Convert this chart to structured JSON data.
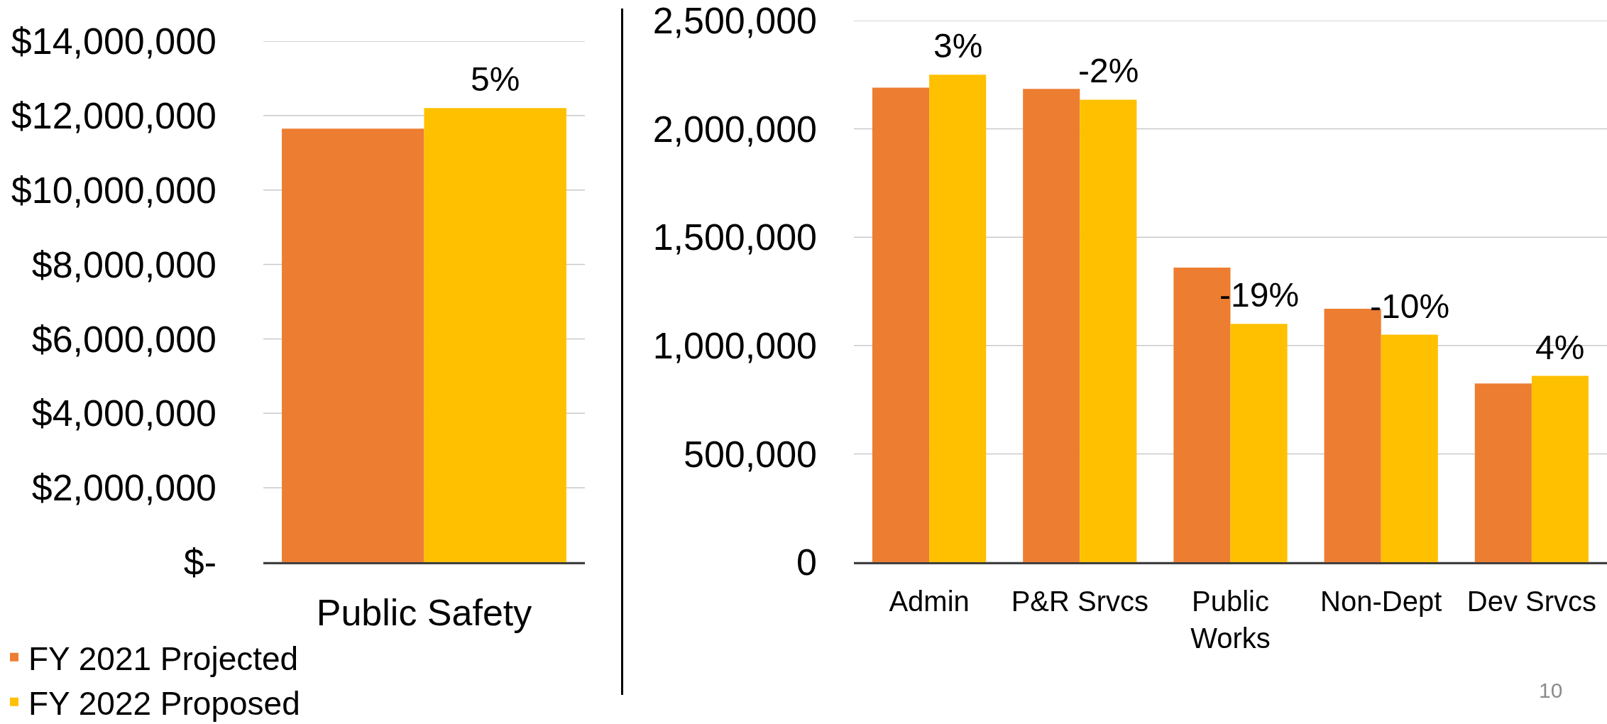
{
  "chart_data": [
    {
      "type": "bar",
      "categories": [
        "Public Safety"
      ],
      "series": [
        {
          "name": "FY 2021 Projected",
          "color": "#ed7d31",
          "values": [
            11650000
          ]
        },
        {
          "name": "FY 2022 Proposed",
          "color": "#ffc000",
          "values": [
            12200000
          ]
        }
      ],
      "ylim": [
        0,
        14000000
      ],
      "yticks": [
        {
          "value": 0,
          "label": "$-"
        },
        {
          "value": 2000000,
          "label": "$2,000,000"
        },
        {
          "value": 4000000,
          "label": "$4,000,000"
        },
        {
          "value": 6000000,
          "label": "$6,000,000"
        },
        {
          "value": 8000000,
          "label": "$8,000,000"
        },
        {
          "value": 10000000,
          "label": "$10,000,000"
        },
        {
          "value": 12000000,
          "label": "$12,000,000"
        },
        {
          "value": 14000000,
          "label": "$14,000,000"
        }
      ],
      "grid": "y",
      "legend": "bottom left",
      "annotations": [
        {
          "text": "5%",
          "x": "Public Safety",
          "y": 12200000
        }
      ]
    },
    {
      "type": "bar",
      "categories": [
        "Admin",
        "P&R Srvcs",
        "Public Works",
        "Non-Dept",
        "Dev Srvcs"
      ],
      "series": [
        {
          "color": "#ed7d31",
          "values": [
            2190000,
            2185000,
            1360000,
            1170000,
            825000
          ]
        },
        {
          "color": "#ffc000",
          "values": [
            2250000,
            2135000,
            1100000,
            1050000,
            860000
          ]
        }
      ],
      "ylim": [
        0,
        2500000
      ],
      "yticks": [
        0,
        {
          "value": 500000,
          "label": "500,000"
        },
        {
          "value": 1000000,
          "label": "1,000,000"
        },
        {
          "value": 1500000,
          "label": "1,500,000"
        },
        {
          "value": 2000000,
          "label": "2,000,000"
        },
        {
          "value": 2500000,
          "label": "2,500,000"
        }
      ],
      "grid": "y",
      "annotations": [
        {
          "text": "3%",
          "x": "Admin",
          "y": 2250000
        },
        {
          "text": "-2%",
          "x": "P&R Srvcs",
          "y": 2135000
        },
        {
          "text": "-19%",
          "x": "Public Works",
          "y": 1100000
        },
        {
          "text": "-10%",
          "x": "Non-Dept",
          "y": 1050000
        },
        {
          "text": "4%",
          "x": "Dev Srvcs",
          "y": 860000
        },
        "10"
      ]
    }
  ]
}
